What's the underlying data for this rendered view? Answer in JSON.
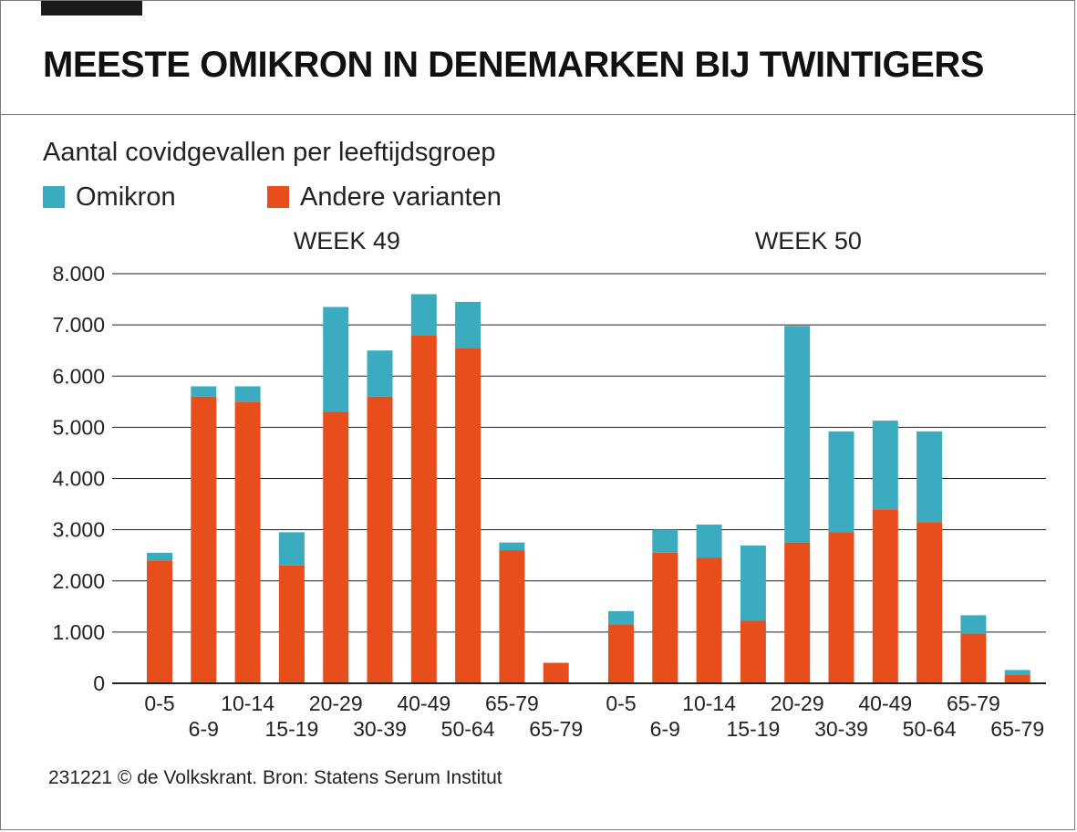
{
  "header": {
    "title": "MEESTE OMIKRON IN DENEMARKEN BIJ TWINTIGERS"
  },
  "chart_data": {
    "type": "bar",
    "stacked": true,
    "title": "MEESTE OMIKRON IN DENEMARKEN BIJ TWINTIGERS",
    "subtitle": "Aantal covidgevallen per leeftijdsgroep",
    "ylim": [
      0,
      8000
    ],
    "yticks": [
      0,
      1000,
      2000,
      3000,
      4000,
      5000,
      6000,
      7000,
      8000
    ],
    "ytick_labels": [
      "0",
      "1.000",
      "2.000",
      "3.000",
      "4.000",
      "5.000",
      "6.000",
      "7.000",
      "8.000"
    ],
    "grid": true,
    "legend": {
      "position": "top-left",
      "entries": [
        {
          "name": "Omikron",
          "color": "#3bacbf"
        },
        {
          "name": "Andere varianten",
          "color": "#e84e1b"
        }
      ]
    },
    "categories": [
      "0-5",
      "6-9",
      "10-14",
      "15-19",
      "20-29",
      "30-39",
      "40-49",
      "50-64",
      "65-79",
      "65-79"
    ],
    "panels": [
      {
        "title": "WEEK 49",
        "series": [
          {
            "name": "Andere varianten",
            "values": [
              2400,
              5600,
              5500,
              2300,
              5300,
              5600,
              6800,
              6550,
              2600,
              400
            ]
          },
          {
            "name": "Omikron",
            "values": [
              150,
              200,
              300,
              650,
              2050,
              900,
              800,
              900,
              150,
              0
            ]
          }
        ]
      },
      {
        "title": "WEEK 50",
        "series": [
          {
            "name": "Andere varianten",
            "values": [
              1150,
              2550,
              2450,
              1220,
              2750,
              2950,
              3400,
              3150,
              970,
              160
            ]
          },
          {
            "name": "Omikron",
            "values": [
              260,
              450,
              650,
              1470,
              4230,
              1970,
              1730,
              1770,
              360,
              100
            ]
          }
        ]
      }
    ]
  },
  "footer": {
    "source": "231221 © de Volkskrant. Bron: Statens Serum Institut"
  }
}
